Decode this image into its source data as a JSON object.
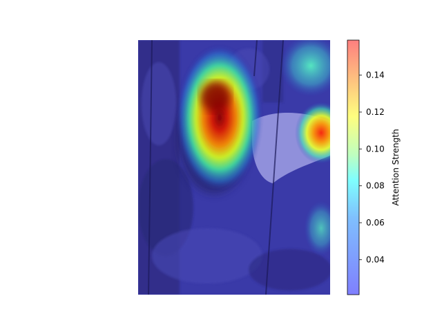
{
  "chart_data": {
    "type": "heatmap",
    "title": "",
    "description_kind": "attention heatmap overlay",
    "colormap": "jet",
    "overlay_alpha": 0.5,
    "colorbar": {
      "label": "Attention Strength",
      "range": [
        0.021,
        0.159
      ],
      "ticks": [
        0.04,
        0.06,
        0.08,
        0.1,
        0.12,
        0.14
      ],
      "tick_labels": [
        "0.04",
        "0.06",
        "0.08",
        "0.10",
        "0.12",
        "0.14"
      ]
    },
    "hotspots": [
      {
        "name": "primary-peak",
        "value": 0.158
      },
      {
        "name": "secondary-peak",
        "value": 0.135
      },
      {
        "name": "top-right-region",
        "value": 0.085
      },
      {
        "name": "lower-right-region",
        "value": 0.07
      }
    ],
    "axes": {
      "visible": false
    }
  }
}
